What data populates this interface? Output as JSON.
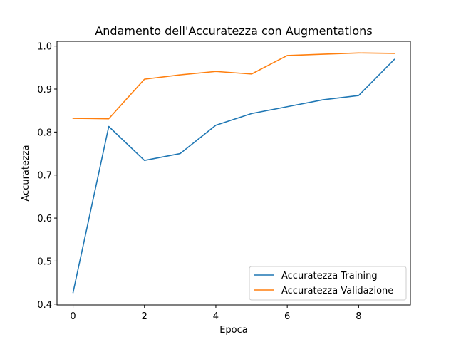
{
  "chart_data": {
    "type": "line",
    "title": "Andamento dell'Accuratezza con Augmentations",
    "xlabel": "Epoca",
    "ylabel": "Accuratezza",
    "x": [
      0,
      1,
      2,
      3,
      4,
      5,
      6,
      7,
      8,
      9
    ],
    "xticks": [
      0,
      2,
      4,
      6,
      8
    ],
    "yticks": [
      0.4,
      0.5,
      0.6,
      0.7,
      0.8,
      0.9,
      1.0
    ],
    "xlim": [
      -0.45,
      9.45
    ],
    "ylim": [
      0.398,
      1.011
    ],
    "grid": false,
    "legend_position": "lower right",
    "series": [
      {
        "name": "Accuratezza Training",
        "color": "#1f77b4",
        "values": [
          0.427,
          0.813,
          0.734,
          0.75,
          0.816,
          0.843,
          0.859,
          0.875,
          0.885,
          0.969
        ]
      },
      {
        "name": "Accuratezza Validazione",
        "color": "#ff7f0e",
        "values": [
          0.832,
          0.831,
          0.923,
          0.933,
          0.941,
          0.935,
          0.978,
          0.981,
          0.984,
          0.983
        ]
      }
    ]
  }
}
